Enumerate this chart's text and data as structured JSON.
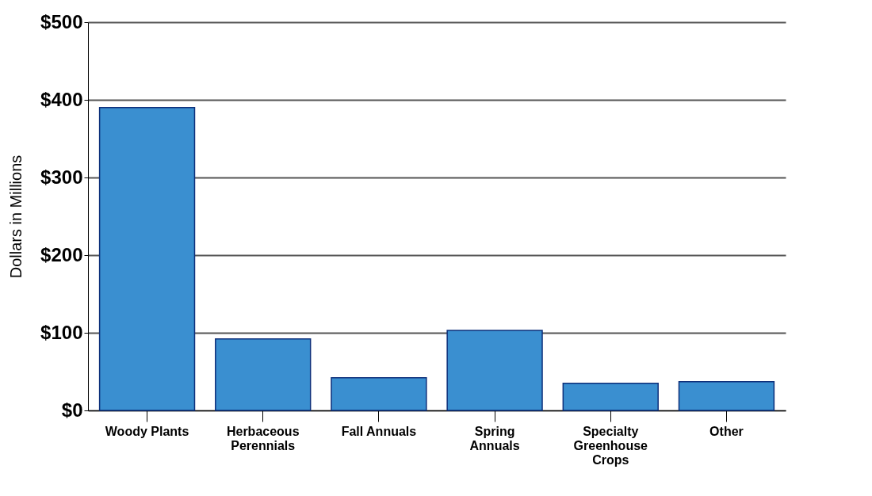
{
  "chart_data": {
    "type": "bar",
    "ylabel": "Dollars in Millions",
    "categories": [
      "Woody Plants",
      "Herbaceous Perennials",
      "Fall Annuals",
      "Spring Annuals",
      "Specialty Greenhouse Crops",
      "Other"
    ],
    "values": [
      390,
      92,
      42,
      103,
      35,
      37
    ],
    "color": "#3a8fd0",
    "ylim": [
      0,
      500
    ],
    "yticks": [
      {
        "value": 0,
        "label": "$0"
      },
      {
        "value": 100,
        "label": "$100"
      },
      {
        "value": 200,
        "label": "$200"
      },
      {
        "value": 300,
        "label": "$300"
      },
      {
        "value": 400,
        "label": "$400"
      },
      {
        "value": 500,
        "label": "$500"
      }
    ],
    "grid": "y"
  }
}
